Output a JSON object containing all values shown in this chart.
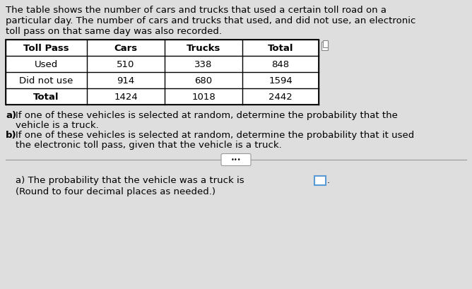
{
  "intro_text_line1": "The table shows the number of cars and trucks that used a certain toll road on a",
  "intro_text_line2": "particular day. The number of cars and trucks that used, and did not use, an electronic",
  "intro_text_line3": "toll pass on that same day was also recorded.",
  "table_headers": [
    "Toll Pass",
    "Cars",
    "Trucks",
    "Total"
  ],
  "table_rows": [
    [
      "Used",
      "510",
      "338",
      "848"
    ],
    [
      "Did not use",
      "914",
      "680",
      "1594"
    ],
    [
      "Total",
      "1424",
      "1018",
      "2442"
    ]
  ],
  "question_a_pre": "a)",
  "question_a_rest": " If one of these vehicles is selected at random, determine the probability that the",
  "question_a_line2": "vehicle is a truck.",
  "question_b_pre": "b)",
  "question_b_rest": " If one of these vehicles is selected at random, determine the probability that it used",
  "question_b_line2": "the electronic toll pass, given that the vehicle is a truck.",
  "answer_pre": "a) The probability that the vehicle was a truck is ",
  "answer_post": ".",
  "round_note": "(Round to four decimal places as needed.)",
  "bg_color": "#dedede",
  "table_bg": "#ffffff",
  "text_color": "#000000",
  "divider_color": "#999999",
  "answer_box_color": "#5b9bd5",
  "font_size_body": 9.5,
  "font_size_table": 9.5
}
